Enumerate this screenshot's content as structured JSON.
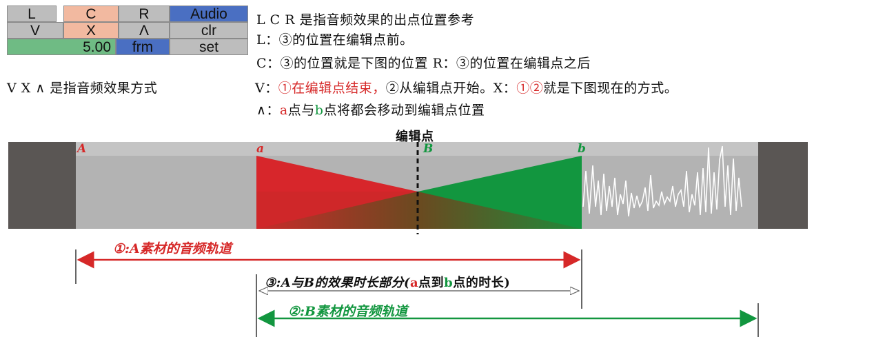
{
  "panel": {
    "row1": [
      "L",
      "C",
      "R",
      "Audio"
    ],
    "row2": [
      "V",
      "X",
      "Λ",
      "clr"
    ],
    "row3": {
      "value": "5.00",
      "unit": "frm",
      "set": "set"
    }
  },
  "notes": {
    "line1": "L C R 是指音频效果的出点位置参考",
    "line2": "L：③的位置在编辑点前。",
    "line3": "C：③的位置就是下图的位置 R：③的位置在编辑点之后",
    "vxa_desc": "V X ∧ 是指音频效果方式",
    "line4_a": "V：",
    "line4_b": "①在编辑点结束，",
    "line4_c": "②从编辑点开始。X：",
    "line4_d": "①②",
    "line4_e": "就是下图现在的方式。",
    "line5_a": "∧：",
    "line5_b": "a",
    "line5_c": "点与",
    "line5_d": "b",
    "line5_e": "点将都会移动到编辑点位置"
  },
  "diagram": {
    "edit_point_label": "编辑点",
    "marker_A": "A",
    "marker_a": "a",
    "marker_B": "B",
    "marker_b": "b",
    "track1_label": "①:A素材的音频轨道",
    "effect_label_a": "③:A与B的效果时长部分(",
    "effect_label_b": "a",
    "effect_label_c": "点到",
    "effect_label_d": "b",
    "effect_label_e": "点的时长)",
    "track2_label": "②:B素材的音频轨道"
  },
  "colors": {
    "red": "#d62828",
    "green": "#12963f",
    "gray_bar": "#b3b3b3",
    "dark_block": "#5a5654"
  }
}
